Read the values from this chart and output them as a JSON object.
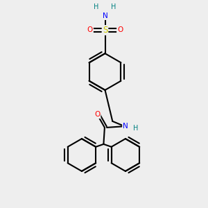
{
  "bg_color": "#eeeeee",
  "atom_colors": {
    "C": "#000000",
    "N": "#0000ff",
    "O": "#ff0000",
    "S": "#cccc00",
    "H": "#008080"
  },
  "bond_color": "#000000",
  "bond_width": 1.5
}
